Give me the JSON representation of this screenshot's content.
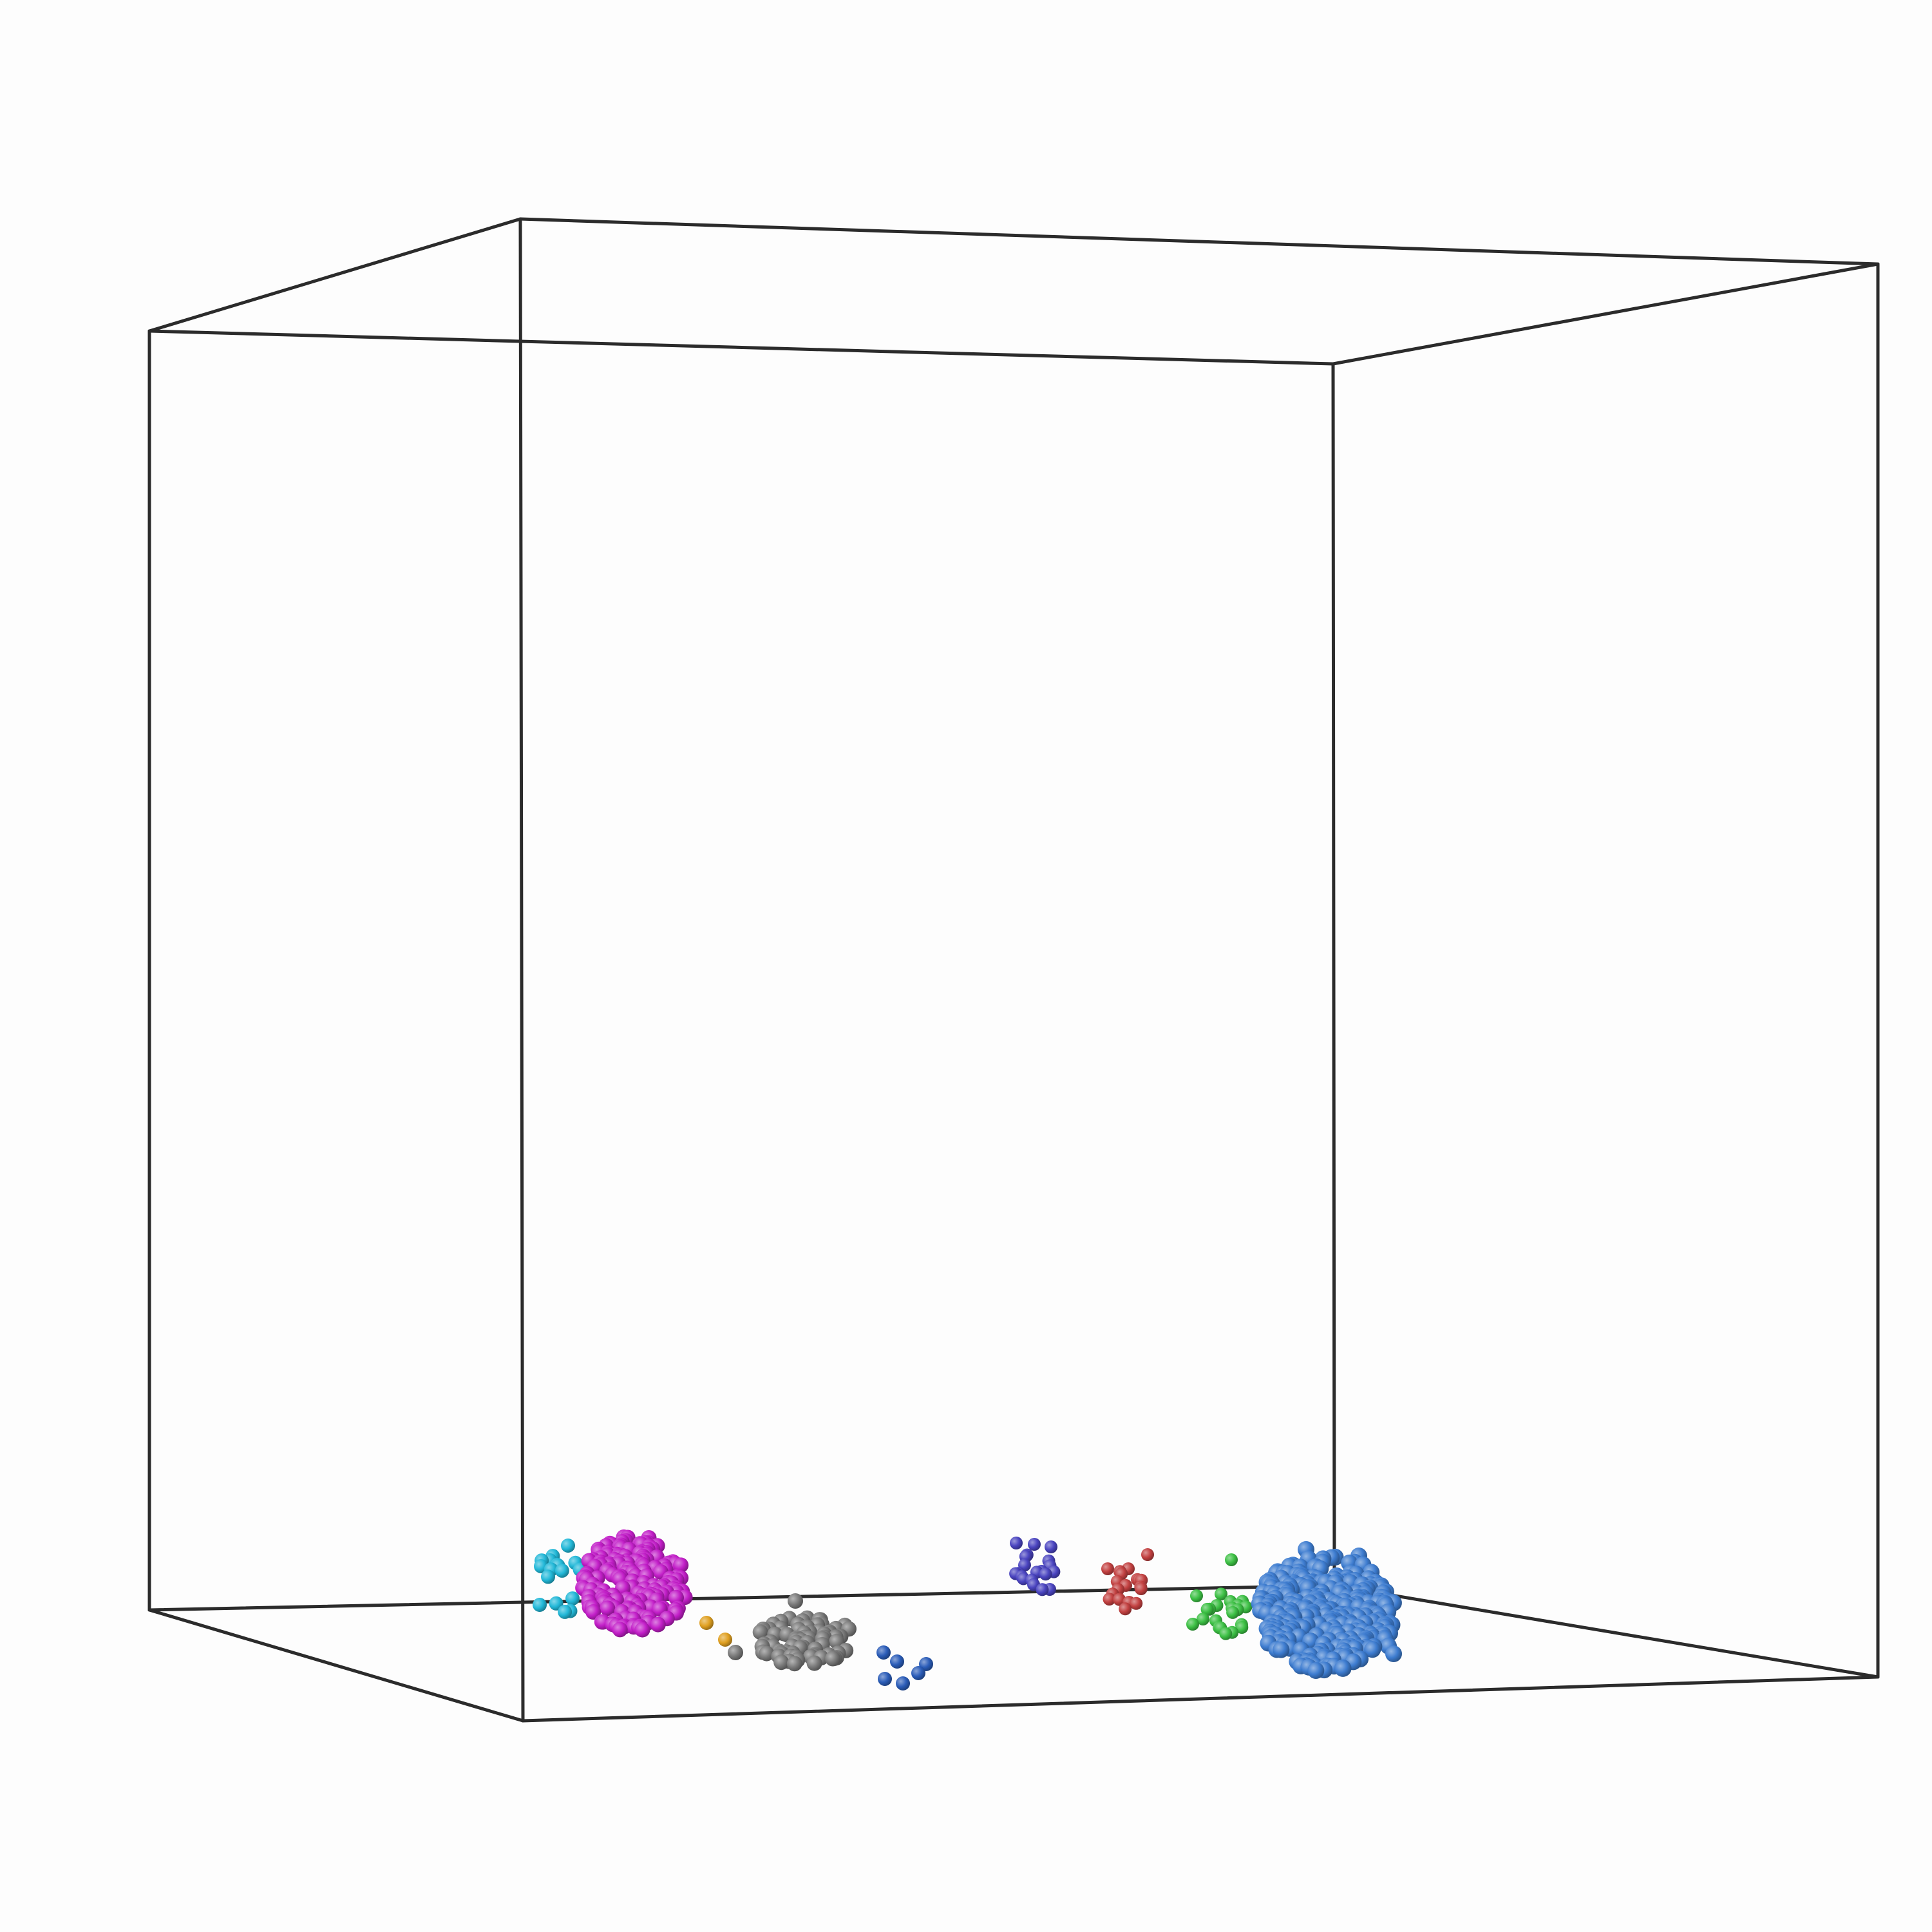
{
  "scene": {
    "background": "#fdfdfd",
    "box_color": "#2b2b2b",
    "clusters": [
      {
        "name": "cyan-cluster",
        "color": "#22b8d8",
        "size": "small"
      },
      {
        "name": "magenta-cluster",
        "color": "#c21ec8",
        "size": "large"
      },
      {
        "name": "orange-cluster",
        "color": "#e0a020",
        "size": "tiny"
      },
      {
        "name": "gray-cluster",
        "color": "#7a7a7a",
        "size": "medium"
      },
      {
        "name": "navy-cluster",
        "color": "#2a5cb8",
        "size": "tiny"
      },
      {
        "name": "indigo-cluster",
        "color": "#4a44c0",
        "size": "small"
      },
      {
        "name": "red-cluster",
        "color": "#c24040",
        "size": "small"
      },
      {
        "name": "green-cluster",
        "color": "#3cc044",
        "size": "small"
      },
      {
        "name": "blue-cluster",
        "color": "#3d7cd0",
        "size": "large"
      }
    ]
  }
}
